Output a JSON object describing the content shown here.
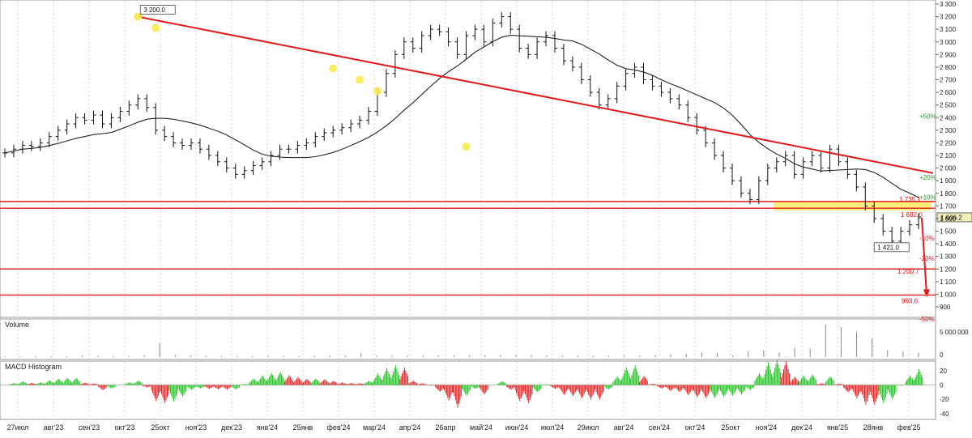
{
  "chart_data": {
    "type": "candlestick",
    "instrument_note": "",
    "price_axis": {
      "min": 900,
      "max": 3300,
      "ticks": [
        900,
        1000,
        1100,
        1200,
        1300,
        1400,
        1500,
        1600,
        1700,
        1800,
        1900,
        2000,
        2100,
        2200,
        2300,
        2400,
        2500,
        2600,
        2700,
        2800,
        2900,
        3000,
        3100,
        3200,
        3300
      ]
    },
    "x_labels": [
      "27июл",
      "авг'23",
      "сен'23",
      "окт'23",
      "25окт",
      "ноя'23",
      "дек'23",
      "янв'24",
      "25янв",
      "фев'24",
      "мар'24",
      "апр'24",
      "26апр",
      "май'24",
      "июн'24",
      "июл'24",
      "29июл",
      "авг'24",
      "сен'24",
      "окт'24",
      "25окт",
      "ноя'24",
      "дек'24",
      "янв'25",
      "28янв",
      "фев'25"
    ],
    "series_close": [
      2120,
      2150,
      2180,
      2170,
      2200,
      2250,
      2300,
      2350,
      2400,
      2380,
      2420,
      2350,
      2400,
      2450,
      2500,
      2550,
      2480,
      2300,
      2250,
      2200,
      2180,
      2200,
      2150,
      2100,
      2050,
      2000,
      1950,
      1980,
      2020,
      2050,
      2100,
      2150,
      2150,
      2180,
      2200,
      2250,
      2280,
      2300,
      2320,
      2350,
      2380,
      2450,
      2600,
      2750,
      2900,
      3000,
      2950,
      3050,
      3100,
      3080,
      3000,
      2900,
      3050,
      3100,
      3000,
      3150,
      3200,
      3100,
      2950,
      2900,
      3000,
      3050,
      2950,
      2850,
      2800,
      2700,
      2600,
      2500,
      2550,
      2650,
      2750,
      2800,
      2700,
      2650,
      2600,
      2550,
      2500,
      2400,
      2300,
      2200,
      2100,
      2000,
      1900,
      1800,
      1750,
      1900,
      2000,
      2050,
      2100,
      1950,
      2050,
      2100,
      2000,
      2150,
      2050,
      1950,
      1850,
      1700,
      1600,
      1500,
      1421,
      1500,
      1550,
      1606.2
    ],
    "ma_note": "",
    "trendline": {
      "from": [
        15,
        3200
      ],
      "to": [
        102,
        1960
      ]
    },
    "touch_points": [
      [
        15,
        3200
      ],
      [
        17,
        3110
      ],
      [
        37,
        2790
      ],
      [
        40,
        2700
      ],
      [
        42,
        2610
      ],
      [
        52,
        2170
      ]
    ],
    "levels": [
      {
        "label": "1 735.1",
        "value": 1735.1
      },
      {
        "label": "1 682.0",
        "value": 1682.0
      },
      {
        "label": "1 200.7",
        "value": 1200.7
      },
      {
        "label": "993.6",
        "value": 993.6
      }
    ],
    "current_price": {
      "label": "1 606.2",
      "value": 1606.2
    },
    "high_label": "3 200.0",
    "low_label": "1 421.0",
    "pct_labels": [
      {
        "label": "+50%",
        "value": 2410
      },
      {
        "label": "+20%",
        "value": 1928
      },
      {
        "label": "+10%",
        "value": 1768
      },
      {
        "label": "-10%",
        "value": 1447
      },
      {
        "label": "-20%",
        "value": 1286
      },
      {
        "label": "-50%",
        "value": 803
      }
    ],
    "volume": {
      "title": "Volume",
      "ticks": [
        "5 000 000",
        "0"
      ],
      "values": [
        200000,
        180000,
        250000,
        210000,
        230000,
        300000,
        260000,
        240000,
        280000,
        400000,
        3000000,
        500000,
        350000,
        260000,
        240000,
        250000,
        260000,
        270000,
        300000,
        260000,
        280000,
        300000,
        350000,
        800000,
        280000,
        260000,
        300000,
        320000,
        350000,
        360000,
        380000,
        400000,
        420000,
        500000,
        450000,
        380000,
        360000,
        340000,
        300000,
        280000,
        350000,
        300000,
        420000,
        600000,
        700000,
        1000000,
        900000,
        300000,
        1200000,
        1400000,
        1000000,
        2000000,
        1800000,
        7000000,
        6500000,
        5500000,
        4000000,
        1500000,
        1200000,
        900000
      ]
    },
    "macd": {
      "title": "MACD Histogram",
      "ticks": [
        "20",
        "0",
        "-20",
        "-40"
      ],
      "ylim": [
        -48,
        30
      ]
    }
  }
}
